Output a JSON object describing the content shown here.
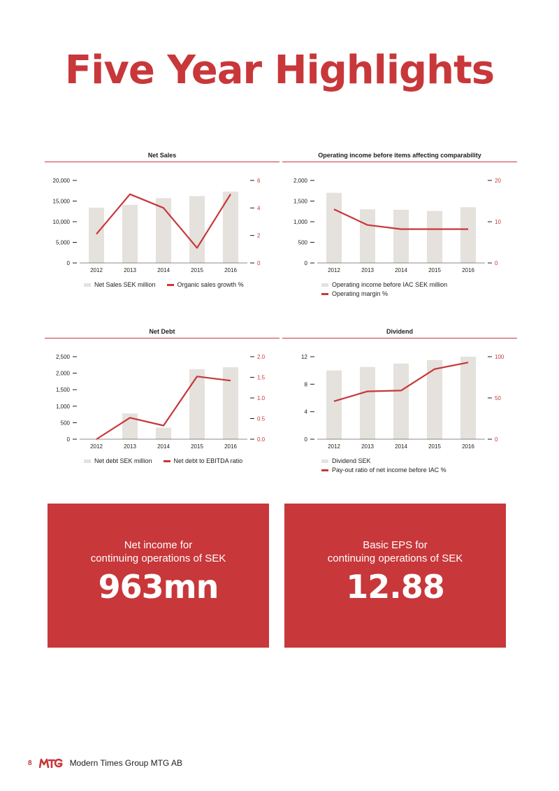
{
  "page": {
    "title": "Five Year Highlights",
    "accent_color": "#c8373a",
    "bar_color": "#e5e1dc"
  },
  "chart_data": [
    {
      "type": "bar",
      "title": "Net Sales",
      "categories": [
        "2012",
        "2013",
        "2014",
        "2015",
        "2016"
      ],
      "series": [
        {
          "name": "Net Sales SEK million",
          "type": "bar",
          "axis": "left",
          "values": [
            13400,
            14100,
            15700,
            16200,
            17300
          ]
        },
        {
          "name": "Organic sales growth %",
          "type": "line",
          "axis": "right",
          "values": [
            2.1,
            5.0,
            4.0,
            1.1,
            5.0
          ]
        }
      ],
      "y_left": {
        "min": 0,
        "max": 20000,
        "ticks": [
          "0",
          "5,000",
          "10,000",
          "15,000",
          "20,000"
        ]
      },
      "y_right": {
        "min": 0,
        "max": 6,
        "ticks": [
          "0",
          "2",
          "4",
          "6"
        ]
      },
      "legend_rows": [
        [
          "Net Sales SEK million",
          "Organic sales growth %"
        ]
      ]
    },
    {
      "type": "bar",
      "title": "Operating income before items affecting comparability",
      "categories": [
        "2012",
        "2013",
        "2014",
        "2015",
        "2016"
      ],
      "series": [
        {
          "name": "Operating income before IAC SEK million",
          "type": "bar",
          "axis": "left",
          "values": [
            1700,
            1300,
            1290,
            1260,
            1350
          ]
        },
        {
          "name": "Operating margin %",
          "type": "line",
          "axis": "right",
          "values": [
            13.0,
            9.2,
            8.2,
            8.2,
            8.2
          ]
        }
      ],
      "y_left": {
        "min": 0,
        "max": 2000,
        "ticks": [
          "0",
          "500",
          "1,000",
          "1,500",
          "2,000"
        ]
      },
      "y_right": {
        "min": 0,
        "max": 20,
        "ticks": [
          "0",
          "10",
          "20"
        ]
      },
      "legend_rows": [
        [
          "Operating income before IAC SEK million"
        ],
        [
          "Operating margin %"
        ]
      ]
    },
    {
      "type": "bar",
      "title": "Net Debt",
      "categories": [
        "2012",
        "2013",
        "2014",
        "2015",
        "2016"
      ],
      "series": [
        {
          "name": "Net debt SEK million",
          "type": "bar",
          "axis": "left",
          "values": [
            0,
            780,
            350,
            2120,
            2180
          ]
        },
        {
          "name": "Net debt to EBITDA ratio",
          "type": "line",
          "axis": "right",
          "values": [
            0.0,
            0.52,
            0.33,
            1.52,
            1.42
          ]
        }
      ],
      "y_left": {
        "min": 0,
        "max": 2500,
        "ticks": [
          "0",
          "500",
          "1,000",
          "1,500",
          "2,000",
          "2,500"
        ]
      },
      "y_right": {
        "min": 0,
        "max": 2.0,
        "ticks": [
          "0.0",
          "0.5",
          "1.0",
          "1.5",
          "2.0"
        ]
      },
      "legend_rows": [
        [
          "Net debt SEK million",
          "Net debt to EBITDA ratio"
        ]
      ]
    },
    {
      "type": "bar",
      "title": "Dividend",
      "categories": [
        "2012",
        "2013",
        "2014",
        "2015",
        "2016"
      ],
      "series": [
        {
          "name": "Dividend SEK",
          "type": "bar",
          "axis": "left",
          "values": [
            10,
            10.5,
            11,
            11.5,
            12
          ]
        },
        {
          "name": "Pay-out ratio of net income before IAC %",
          "type": "line",
          "axis": "right",
          "values": [
            46,
            58,
            59,
            85,
            93
          ]
        }
      ],
      "y_left": {
        "min": 0,
        "max": 12,
        "ticks": [
          "0",
          "4",
          "8",
          "12"
        ]
      },
      "y_right": {
        "min": 0,
        "max": 100,
        "ticks": [
          "0",
          "50",
          "100"
        ]
      },
      "legend_rows": [
        [
          "Dividend SEK"
        ],
        [
          "Pay-out ratio of net income before IAC %"
        ]
      ]
    }
  ],
  "highlights": [
    {
      "label_line1": "Net income for",
      "label_line2": "continuing operations of SEK",
      "value": "963mn"
    },
    {
      "label_line1": "Basic EPS for",
      "label_line2": "continuing operations of SEK",
      "value": "12.88"
    }
  ],
  "footer": {
    "page_number": "8",
    "logo_text": "MTG",
    "company": "Modern Times Group MTG AB"
  }
}
